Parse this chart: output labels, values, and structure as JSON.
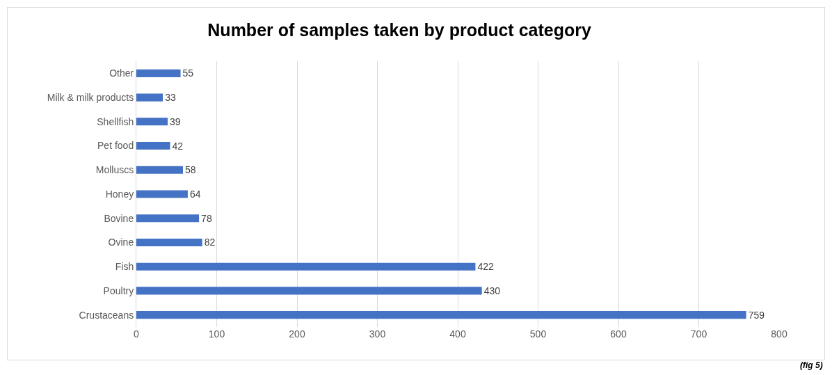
{
  "chart_data": {
    "type": "bar",
    "orientation": "horizontal",
    "title": "Number of samples taken by product category",
    "categories": [
      "Other",
      "Milk & milk products",
      "Shellfish",
      "Pet food",
      "Molluscs",
      "Honey",
      "Bovine",
      "Ovine",
      "Fish",
      "Poultry",
      "Crustaceans"
    ],
    "values": [
      55,
      33,
      39,
      42,
      58,
      64,
      78,
      82,
      422,
      430,
      759
    ],
    "color": "#4472c4",
    "xlim": [
      0,
      800
    ],
    "xticks": [
      0,
      100,
      200,
      300,
      400,
      500,
      600,
      700,
      800
    ],
    "grid": "x",
    "data_labels": true,
    "annotations": [
      "(fig 5)"
    ]
  }
}
